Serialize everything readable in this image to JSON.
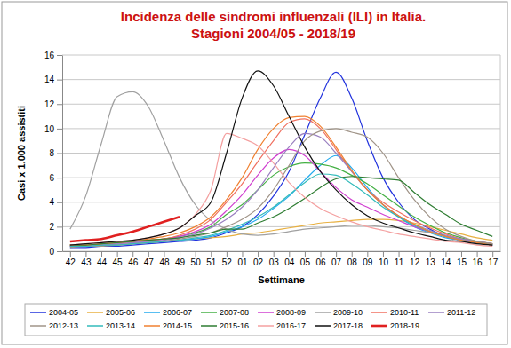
{
  "chart_data": {
    "type": "line",
    "title": "Incidenza delle sindromi influenzali (ILI) in Italia.",
    "subtitle": "Stagioni 2004/05 - 2018/19",
    "x_label": "Settimane",
    "y_label": "Casi x 1.000 assistiti",
    "categories": [
      "42",
      "43",
      "44",
      "45",
      "46",
      "47",
      "48",
      "49",
      "50",
      "51",
      "52",
      "01",
      "02",
      "03",
      "04",
      "05",
      "06",
      "07",
      "08",
      "09",
      "10",
      "11",
      "12",
      "13",
      "14",
      "15",
      "16",
      "17"
    ],
    "ylim": [
      0,
      16
    ],
    "yticks": [
      0,
      2,
      4,
      6,
      8,
      10,
      12,
      14,
      16
    ],
    "grid": true,
    "legend": "bottom",
    "series": [
      {
        "name": "2004-05",
        "color": "#2233dd",
        "values": [
          0.3,
          0.3,
          0.4,
          0.4,
          0.5,
          0.6,
          0.7,
          0.8,
          0.9,
          1.1,
          1.5,
          2.0,
          3.0,
          4.5,
          6.5,
          9.5,
          12.5,
          14.6,
          12.5,
          9.0,
          6.0,
          4.0,
          2.6,
          1.8,
          1.2,
          0.9,
          0.7,
          0.5
        ]
      },
      {
        "name": "2005-06",
        "color": "#e8b040",
        "values": [
          0.4,
          0.4,
          0.5,
          0.5,
          0.6,
          0.7,
          0.8,
          0.9,
          1.0,
          1.1,
          1.2,
          1.4,
          1.5,
          1.7,
          1.9,
          2.1,
          2.3,
          2.4,
          2.5,
          2.6,
          2.6,
          2.5,
          2.3,
          2.0,
          1.7,
          1.4,
          1.1,
          0.9
        ]
      },
      {
        "name": "2006-07",
        "color": "#22aaee",
        "values": [
          0.4,
          0.4,
          0.5,
          0.5,
          0.6,
          0.7,
          0.8,
          0.9,
          1.0,
          1.2,
          1.6,
          2.0,
          2.6,
          3.5,
          4.5,
          5.8,
          7.0,
          7.8,
          6.8,
          5.2,
          3.8,
          2.8,
          2.0,
          1.5,
          1.1,
          0.9,
          0.7,
          0.5
        ]
      },
      {
        "name": "2007-08",
        "color": "#44b044",
        "values": [
          0.5,
          0.5,
          0.6,
          0.7,
          0.8,
          0.9,
          1.0,
          1.2,
          1.5,
          2.0,
          3.0,
          3.8,
          5.0,
          6.2,
          6.9,
          7.2,
          7.1,
          6.8,
          6.2,
          5.5,
          4.6,
          3.7,
          2.8,
          2.1,
          1.5,
          1.1,
          0.8,
          0.6
        ]
      },
      {
        "name": "2008-09",
        "color": "#d040d0",
        "values": [
          0.4,
          0.4,
          0.5,
          0.6,
          0.7,
          0.8,
          1.0,
          1.2,
          1.6,
          2.2,
          3.3,
          4.6,
          6.2,
          7.6,
          8.3,
          7.8,
          6.5,
          5.2,
          4.2,
          3.6,
          3.0,
          2.5,
          2.0,
          1.6,
          1.2,
          0.9,
          0.7,
          0.5
        ]
      },
      {
        "name": "2009-10",
        "color": "#a0a0a0",
        "values": [
          1.8,
          4.5,
          8.8,
          12.6,
          13.0,
          11.8,
          9.0,
          6.0,
          3.8,
          2.5,
          1.8,
          1.4,
          1.3,
          1.4,
          1.6,
          1.8,
          1.9,
          2.0,
          2.1,
          2.1,
          2.0,
          1.9,
          1.7,
          1.5,
          1.2,
          1.0,
          0.8,
          0.6
        ]
      },
      {
        "name": "2010-11",
        "color": "#f07060",
        "values": [
          0.5,
          0.5,
          0.6,
          0.7,
          0.8,
          0.9,
          1.0,
          1.3,
          1.8,
          2.6,
          4.0,
          5.5,
          7.3,
          9.0,
          10.5,
          10.8,
          10.0,
          8.3,
          6.5,
          5.0,
          4.0,
          3.2,
          2.5,
          1.9,
          1.4,
          1.0,
          0.8,
          0.6
        ]
      },
      {
        "name": "2011-12",
        "color": "#9a80c0",
        "values": [
          0.4,
          0.4,
          0.5,
          0.6,
          0.7,
          0.8,
          0.9,
          1.1,
          1.4,
          1.9,
          2.6,
          3.6,
          5.0,
          6.8,
          8.5,
          9.6,
          9.3,
          8.0,
          6.5,
          5.0,
          3.8,
          2.9,
          2.2,
          1.7,
          1.3,
          1.0,
          0.8,
          0.6
        ]
      },
      {
        "name": "2012-13",
        "color": "#a09488",
        "values": [
          0.3,
          0.4,
          0.4,
          0.5,
          0.6,
          0.7,
          0.8,
          1.0,
          1.2,
          1.5,
          2.0,
          2.6,
          3.5,
          5.0,
          7.0,
          9.0,
          9.8,
          10.0,
          9.7,
          9.3,
          8.0,
          6.0,
          4.2,
          2.8,
          1.8,
          1.2,
          0.8,
          0.6
        ]
      },
      {
        "name": "2013-14",
        "color": "#33bbbb",
        "values": [
          0.4,
          0.4,
          0.5,
          0.5,
          0.6,
          0.7,
          0.8,
          0.9,
          1.1,
          1.3,
          1.7,
          2.2,
          2.8,
          3.6,
          4.6,
          5.6,
          6.3,
          6.2,
          5.5,
          4.6,
          3.6,
          2.8,
          2.1,
          1.6,
          1.2,
          0.9,
          0.7,
          0.5
        ]
      },
      {
        "name": "2014-15",
        "color": "#f08030",
        "values": [
          0.5,
          0.5,
          0.6,
          0.7,
          0.8,
          1.0,
          1.2,
          1.5,
          2.0,
          2.8,
          4.2,
          6.0,
          8.3,
          10.0,
          10.9,
          11.0,
          10.2,
          8.5,
          6.6,
          5.0,
          3.8,
          2.9,
          2.2,
          1.6,
          1.2,
          0.9,
          0.7,
          0.5
        ]
      },
      {
        "name": "2015-16",
        "color": "#2e7d32",
        "values": [
          0.5,
          0.5,
          0.6,
          0.7,
          0.8,
          0.9,
          1.0,
          1.1,
          1.3,
          1.5,
          1.8,
          1.8,
          2.3,
          2.8,
          3.5,
          4.3,
          5.2,
          5.9,
          6.1,
          6.0,
          5.9,
          5.8,
          4.8,
          3.8,
          3.0,
          2.2,
          1.7,
          1.2
        ]
      },
      {
        "name": "2016-17",
        "color": "#f4a0a0",
        "values": [
          0.5,
          0.6,
          0.7,
          0.8,
          0.9,
          1.1,
          1.4,
          1.9,
          3.0,
          5.0,
          9.6,
          9.2,
          8.6,
          7.2,
          5.6,
          4.4,
          3.5,
          2.9,
          2.4,
          2.0,
          1.7,
          1.4,
          1.2,
          1.0,
          0.8,
          0.7,
          0.5,
          0.4
        ]
      },
      {
        "name": "2017-18",
        "color": "#111111",
        "values": [
          0.5,
          0.6,
          0.7,
          0.8,
          0.9,
          1.1,
          1.4,
          1.9,
          2.9,
          4.0,
          8.0,
          12.5,
          14.7,
          13.5,
          11.0,
          8.5,
          6.5,
          5.0,
          3.8,
          2.9,
          2.3,
          1.9,
          1.5,
          1.2,
          0.9,
          0.8,
          0.6,
          0.5
        ]
      },
      {
        "name": "2018-19",
        "color": "#e02020",
        "values": [
          0.8,
          0.9,
          1.0,
          1.3,
          1.6,
          2.0,
          2.4,
          2.8,
          null,
          null,
          null,
          null,
          null,
          null,
          null,
          null,
          null,
          null,
          null,
          null,
          null,
          null,
          null,
          null,
          null,
          null,
          null,
          null
        ]
      }
    ]
  }
}
